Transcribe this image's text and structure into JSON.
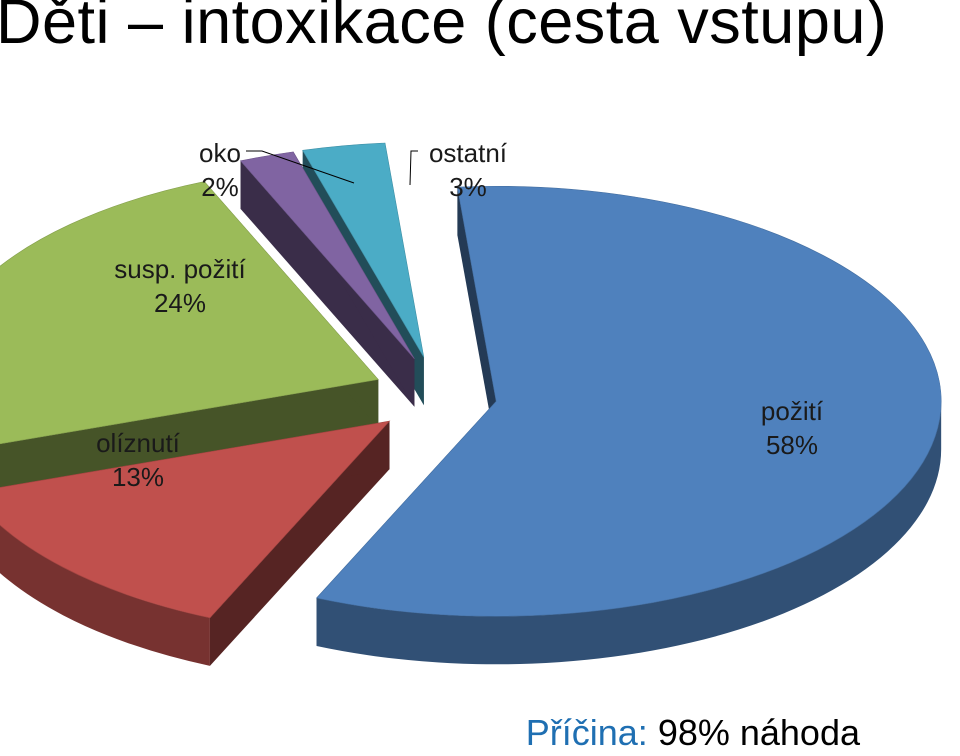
{
  "slide": {
    "title": "Děti – intoxikace (cesta vstupu)",
    "footer_label": "Příčina:",
    "footer_value": "98% náhoda"
  },
  "colors": {
    "požití": "#4f81bd",
    "olíznutí": "#c0504d",
    "susp. požití": "#9bbb59",
    "oko": "#8064a2",
    "ostatní": "#4bacc6",
    "footer_accent": "#1f6fb2"
  },
  "chart_data": {
    "type": "pie",
    "style": "3d-exploded",
    "slices": [
      {
        "label": "požití",
        "value": 58,
        "value_label": "58%"
      },
      {
        "label": "olíznutí",
        "value": 13,
        "value_label": "13%"
      },
      {
        "label": "susp. požití",
        "value": 24,
        "value_label": "24%"
      },
      {
        "label": "oko",
        "value": 2,
        "value_label": "2%"
      },
      {
        "label": "ostatní",
        "value": 3,
        "value_label": "3%"
      }
    ]
  }
}
